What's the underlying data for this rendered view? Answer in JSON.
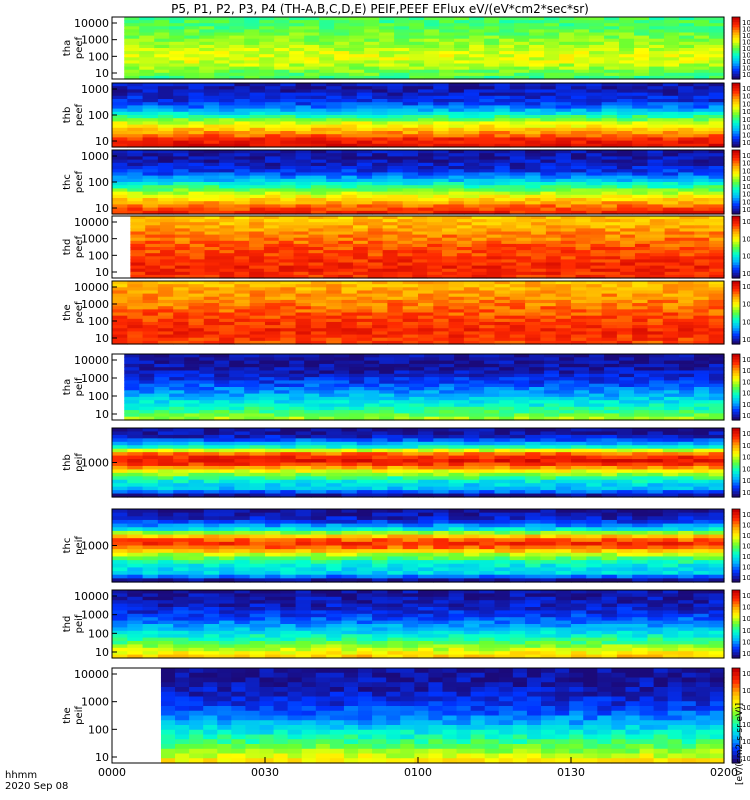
{
  "chart_data": {
    "type": "heatmap",
    "title": "P5, P1, P2, P3, P4 (TH-A,B,C,D,E) PEIF,PEEF EFlux eV/(eV*cm2*sec*sr)",
    "x_ticks": [
      "0000",
      "0030",
      "0100",
      "0130",
      "0200"
    ],
    "x_label_line1": "hhmm",
    "x_label_line2": "2020 Sep 08",
    "colorbar_label": "[eV/(cm2-s-sr-eV)]",
    "colormap": [
      "#1b0a7a",
      "#0033ff",
      "#00b4ff",
      "#00ffd0",
      "#66ff33",
      "#ffff00",
      "#ffaa00",
      "#ff2a00",
      "#c80000"
    ],
    "panels": [
      {
        "probe": "tha",
        "species": "peef",
        "yticks": [
          "10000",
          "1000",
          "100",
          "10"
        ],
        "cbar_ticks": [
          "10^10",
          "10^9",
          "10^8",
          "10^7",
          "10^6",
          "10^5",
          "10^4",
          "10^3",
          "10^2"
        ],
        "start_frac": 0.02,
        "profile": [
          0.45,
          0.5,
          0.55,
          0.6,
          0.6,
          0.58,
          0.55,
          0.52,
          0.5,
          0.48,
          0.46,
          0.45
        ]
      },
      {
        "probe": "thb",
        "species": "peef",
        "yticks": [
          "1000",
          "100",
          "10"
        ],
        "cbar_ticks": [
          "10^8",
          "10^7",
          "10^6",
          "10^5",
          "10^4",
          "10^3",
          "10^2",
          "10^1"
        ],
        "start_frac": 0.0,
        "profile": [
          0.95,
          0.9,
          0.8,
          0.7,
          0.6,
          0.45,
          0.3,
          0.18,
          0.1,
          0.08,
          0.05,
          0.05
        ]
      },
      {
        "probe": "thc",
        "species": "peef",
        "yticks": [
          "1000",
          "100",
          "10"
        ],
        "cbar_ticks": [
          "10^8",
          "10^7",
          "10^6",
          "10^5",
          "10^4",
          "10^3",
          "10^2",
          "10^1"
        ],
        "start_frac": 0.0,
        "profile": [
          0.9,
          0.82,
          0.72,
          0.62,
          0.5,
          0.38,
          0.25,
          0.15,
          0.08,
          0.06,
          0.04,
          0.04
        ]
      },
      {
        "probe": "thd",
        "species": "peef",
        "yticks": [
          "10000",
          "1000",
          "100",
          "10"
        ],
        "cbar_ticks": [
          "10^8",
          "10^6",
          "10^4",
          "10^2"
        ],
        "start_frac": 0.03,
        "profile": [
          0.88,
          0.9,
          0.9,
          0.88,
          0.86,
          0.85,
          0.83,
          0.8,
          0.78,
          0.75,
          0.72,
          0.7
        ]
      },
      {
        "probe": "the",
        "species": "peef",
        "yticks": [
          "10000",
          "1000",
          "100",
          "10"
        ],
        "cbar_ticks": [
          "10^8",
          "10^6",
          "10^4",
          "10^2"
        ],
        "start_frac": 0.0,
        "profile": [
          0.85,
          0.88,
          0.9,
          0.88,
          0.86,
          0.84,
          0.82,
          0.8,
          0.78,
          0.76,
          0.74,
          0.72
        ]
      },
      {
        "probe": "tha",
        "species": "peif",
        "yticks": [
          "10000",
          "1000",
          "100",
          "10"
        ],
        "cbar_ticks": [
          "10^7",
          "10^6",
          "10^5",
          "10^4",
          "10^3",
          "10^2"
        ],
        "start_frac": 0.02,
        "profile": [
          0.55,
          0.45,
          0.38,
          0.32,
          0.26,
          0.2,
          0.14,
          0.1,
          0.06,
          0.04,
          0.03,
          0.03
        ]
      },
      {
        "probe": "thb",
        "species": "peif",
        "yticks": [
          "1000"
        ],
        "cbar_ticks": [
          "10^7",
          "10^6",
          "10^5",
          "10^4",
          "10^3",
          "10^2"
        ],
        "start_frac": 0.0,
        "profile": [
          0.02,
          0.28,
          0.3,
          0.45,
          0.6,
          0.85,
          0.95,
          0.8,
          0.4,
          0.2,
          0.05,
          0.02
        ]
      },
      {
        "probe": "thc",
        "species": "peif",
        "yticks": [
          "1000"
        ],
        "cbar_ticks": [
          "10^8",
          "10^7",
          "10^6",
          "10^5",
          "10^4",
          "10^3",
          "10^2"
        ],
        "start_frac": 0.0,
        "profile": [
          0.02,
          0.3,
          0.32,
          0.4,
          0.55,
          0.8,
          0.9,
          0.7,
          0.35,
          0.15,
          0.05,
          0.02
        ]
      },
      {
        "probe": "thd",
        "species": "peif",
        "yticks": [
          "10000",
          "1000",
          "100",
          "10"
        ],
        "cbar_ticks": [
          "10^7",
          "10^6",
          "10^5",
          "10^4",
          "10^3",
          "10^2"
        ],
        "start_frac": 0.0,
        "profile": [
          0.7,
          0.6,
          0.5,
          0.4,
          0.32,
          0.25,
          0.18,
          0.12,
          0.08,
          0.06,
          0.04,
          0.03
        ]
      },
      {
        "probe": "the",
        "species": "peif",
        "yticks": [
          "10000",
          "1000",
          "100",
          "10"
        ],
        "cbar_ticks": [
          "10^7",
          "10^6",
          "10^5",
          "10^4",
          "10^3",
          "10^2"
        ],
        "start_frac": 0.08,
        "profile": [
          0.65,
          0.55,
          0.46,
          0.38,
          0.3,
          0.22,
          0.16,
          0.1,
          0.07,
          0.05,
          0.03,
          0.02
        ]
      }
    ]
  }
}
